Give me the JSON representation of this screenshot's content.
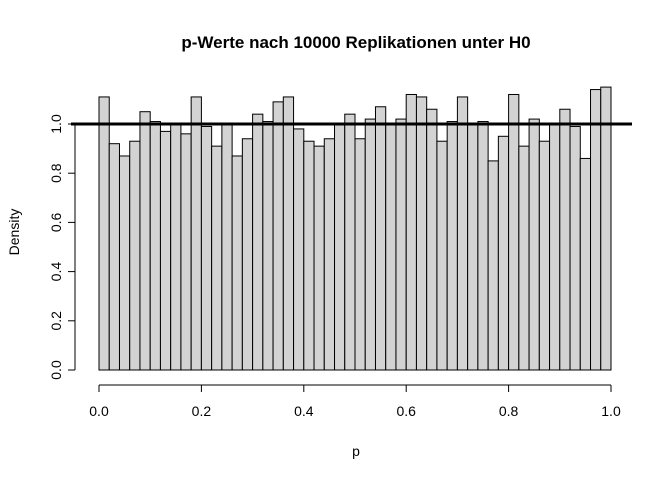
{
  "chart_data": {
    "type": "bar",
    "title": "p-Werte nach 10000 Replikationen unter H0",
    "xlabel": "p",
    "ylabel": "Density",
    "xlim": [
      0,
      1
    ],
    "ylim": [
      0,
      1.15
    ],
    "x_ticks": [
      "0.0",
      "0.2",
      "0.4",
      "0.6",
      "0.8",
      "1.0"
    ],
    "y_ticks": [
      "0.0",
      "0.2",
      "0.4",
      "0.6",
      "0.8",
      "1.0"
    ],
    "bin_width": 0.02,
    "bin_starts": [
      0.0,
      0.02,
      0.04,
      0.06,
      0.08,
      0.1,
      0.12,
      0.14,
      0.16,
      0.18,
      0.2,
      0.22,
      0.24,
      0.26,
      0.28,
      0.3,
      0.32,
      0.34,
      0.36,
      0.38,
      0.4,
      0.42,
      0.44,
      0.46,
      0.48,
      0.5,
      0.52,
      0.54,
      0.56,
      0.58,
      0.6,
      0.62,
      0.64,
      0.66,
      0.68,
      0.7,
      0.72,
      0.74,
      0.76,
      0.78,
      0.8,
      0.82,
      0.84,
      0.86,
      0.88,
      0.9,
      0.92,
      0.94,
      0.96,
      0.98
    ],
    "values": [
      1.11,
      0.92,
      0.87,
      0.93,
      1.05,
      1.01,
      0.97,
      1.0,
      0.96,
      1.11,
      0.99,
      0.91,
      1.0,
      0.87,
      0.94,
      1.04,
      1.01,
      1.09,
      1.11,
      0.98,
      0.93,
      0.91,
      0.94,
      1.0,
      1.04,
      0.94,
      1.02,
      1.07,
      1.0,
      1.02,
      1.12,
      1.11,
      1.06,
      0.93,
      1.01,
      1.11,
      1.0,
      1.01,
      0.85,
      0.95,
      1.12,
      0.91,
      1.02,
      0.93,
      1.0,
      1.06,
      0.99,
      0.86,
      1.14,
      1.15
    ],
    "reference_line": {
      "y": 1.0,
      "orientation": "horizontal"
    },
    "bar_fill": "#d3d3d3",
    "bar_stroke": "#000000",
    "grid": false
  }
}
